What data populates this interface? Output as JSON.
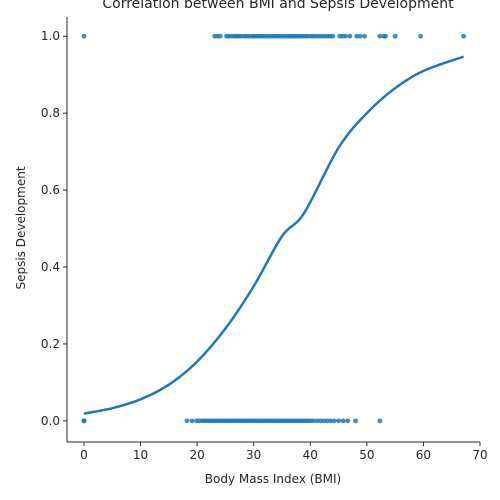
{
  "chart_data": {
    "type": "scatter",
    "title": "Correlation between BMI and Sepsis Development",
    "xlabel": "Body Mass Index (BMI)",
    "ylabel": "Sepsis Development",
    "xlim": [
      -3,
      70
    ],
    "ylim": [
      -0.055,
      1.05
    ],
    "x_ticks": [
      0,
      10,
      20,
      30,
      40,
      50,
      60,
      70
    ],
    "y_ticks": [
      0.0,
      0.2,
      0.4,
      0.6,
      0.8,
      1.0
    ],
    "x_tick_labels": [
      "0",
      "10",
      "20",
      "30",
      "40",
      "50",
      "60",
      "70"
    ],
    "y_tick_labels": [
      "0.0",
      "0.2",
      "0.4",
      "0.6",
      "0.8",
      "1.0"
    ],
    "grid": false,
    "point_color": "#1f77b4",
    "line_color": "#1f77b4",
    "series": [
      {
        "kind": "points",
        "y": 1,
        "x": [
          0,
          23.1,
          23.6,
          24.1,
          25.2,
          25.6,
          26.1,
          26.6,
          27.0,
          27.4,
          27.8,
          28.3,
          28.7,
          29.1,
          29.6,
          30.0,
          30.4,
          30.8,
          31.2,
          31.6,
          32.0,
          32.4,
          32.8,
          33.2,
          33.6,
          34.0,
          34.4,
          34.8,
          35.2,
          35.6,
          36.0,
          36.4,
          36.8,
          37.2,
          37.6,
          38.0,
          38.4,
          38.8,
          39.2,
          39.6,
          40.1,
          40.5,
          41.0,
          41.5,
          42.0,
          42.5,
          43.0,
          43.5,
          44.0,
          45.2,
          45.7,
          46.2,
          47.0,
          48.2,
          48.8,
          49.6,
          52.3,
          53.0,
          53.3,
          55.0,
          59.5,
          67.1
        ]
      },
      {
        "kind": "points",
        "y": 0,
        "x": [
          0,
          0,
          0,
          18.2,
          19.1,
          19.9,
          20.4,
          20.9,
          21.3,
          21.7,
          22.1,
          22.5,
          22.9,
          23.3,
          23.7,
          24.1,
          24.5,
          24.9,
          25.3,
          25.7,
          26.1,
          26.5,
          26.9,
          27.3,
          27.7,
          28.1,
          28.5,
          28.9,
          29.3,
          29.7,
          30.1,
          30.5,
          30.9,
          31.3,
          31.7,
          32.1,
          32.5,
          32.9,
          33.3,
          33.7,
          34.1,
          34.5,
          34.9,
          35.3,
          35.7,
          36.1,
          36.5,
          36.9,
          37.3,
          37.7,
          38.1,
          38.5,
          38.9,
          39.3,
          39.7,
          40.1,
          40.6,
          41.2,
          41.8,
          42.4,
          43.0,
          43.6,
          44.2,
          45.0,
          45.8,
          46.6,
          48.0,
          52.3
        ]
      },
      {
        "kind": "logistic-fit",
        "x": [
          0,
          5,
          10,
          15,
          20,
          25,
          30,
          35,
          38.9,
          45,
          50,
          55,
          60,
          67.1
        ],
        "y": [
          0.019,
          0.033,
          0.056,
          0.094,
          0.154,
          0.24,
          0.35,
          0.48,
          0.54,
          0.71,
          0.8,
          0.865,
          0.91,
          0.947
        ]
      }
    ]
  }
}
